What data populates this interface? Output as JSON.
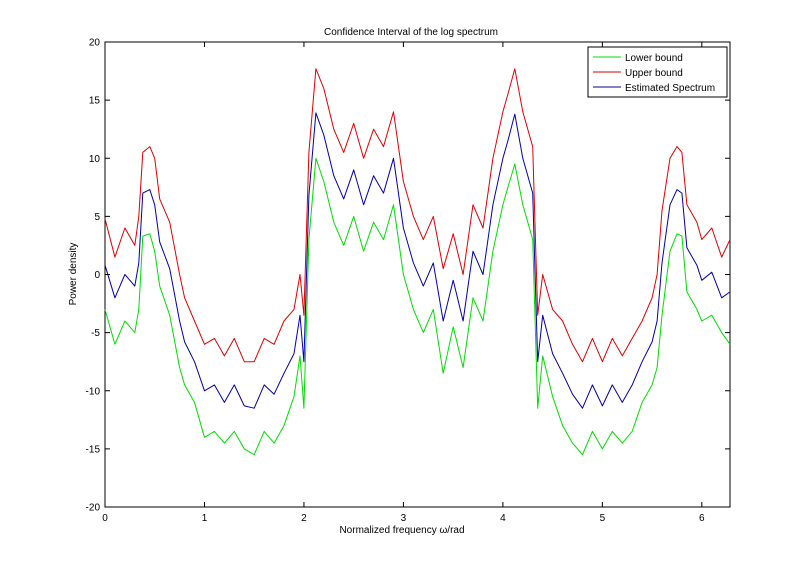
{
  "chart_data": {
    "type": "line",
    "title": "Confidence Interval of the log spectrum",
    "xlabel": "Normalized frequency  ω/rad",
    "ylabel": "Power density",
    "xlim": [
      0,
      6.2832
    ],
    "ylim": [
      -20,
      20
    ],
    "xticks": [
      "0",
      "1",
      "2",
      "3",
      "4",
      "5",
      "6"
    ],
    "yticks": [
      "-20",
      "-15",
      "-10",
      "-5",
      "0",
      "5",
      "10",
      "15",
      "20"
    ],
    "grid": false,
    "legend_position": "top-right",
    "colors": {
      "lower": "#00dd00",
      "upper": "#dd0000",
      "estimate": "#0000aa"
    },
    "x": [
      0,
      0.1,
      0.2,
      0.3,
      0.34,
      0.38,
      0.45,
      0.5,
      0.55,
      0.65,
      0.75,
      0.8,
      0.9,
      1.0,
      1.1,
      1.2,
      1.3,
      1.4,
      1.5,
      1.6,
      1.7,
      1.8,
      1.9,
      1.96,
      2.0,
      2.05,
      2.12,
      2.2,
      2.3,
      2.4,
      2.5,
      2.6,
      2.7,
      2.8,
      2.9,
      3.0,
      3.1,
      3.2,
      3.3,
      3.4,
      3.5,
      3.6,
      3.7,
      3.8,
      3.9,
      4.0,
      4.05,
      4.12,
      4.2,
      4.3,
      4.35,
      4.4,
      4.5,
      4.6,
      4.7,
      4.8,
      4.9,
      5.0,
      5.1,
      5.2,
      5.3,
      5.4,
      5.5,
      5.55,
      5.6,
      5.68,
      5.75,
      5.8,
      5.85,
      5.95,
      6.0,
      6.1,
      6.2,
      6.2832
    ],
    "series": [
      {
        "name": "Lower bound",
        "key": "lower",
        "values": [
          -3.0,
          -6.0,
          -4.0,
          -5.0,
          -3.0,
          3.3,
          3.5,
          2.0,
          -1.0,
          -3.5,
          -8.0,
          -9.5,
          -11.0,
          -14.0,
          -13.5,
          -14.5,
          -13.5,
          -15.0,
          -15.5,
          -13.5,
          -14.5,
          -13.0,
          -10.5,
          -7.0,
          -11.5,
          3.0,
          10.0,
          8.0,
          4.5,
          2.5,
          5.0,
          2.0,
          4.5,
          3.0,
          6.0,
          0.0,
          -3.0,
          -5.0,
          -3.0,
          -8.5,
          -4.5,
          -8.0,
          -2.0,
          -4.0,
          2.0,
          6.0,
          7.5,
          9.5,
          6.0,
          3.0,
          -11.5,
          -7.0,
          -10.5,
          -13.0,
          -14.5,
          -15.5,
          -13.5,
          -15.0,
          -13.5,
          -14.5,
          -13.5,
          -11.0,
          -9.5,
          -8.0,
          -3.5,
          2.0,
          3.5,
          3.3,
          -1.5,
          -3.0,
          -4.0,
          -3.5,
          -5.0,
          -6.0
        ]
      },
      {
        "name": "Upper bound",
        "key": "upper",
        "values": [
          4.8,
          1.5,
          4.0,
          2.5,
          5.0,
          10.5,
          11.0,
          10.0,
          6.5,
          4.5,
          0.0,
          -2.0,
          -4.0,
          -6.0,
          -5.5,
          -7.0,
          -5.5,
          -7.5,
          -7.5,
          -5.5,
          -6.0,
          -4.0,
          -3.0,
          0.0,
          -3.5,
          10.5,
          17.7,
          16.0,
          12.5,
          10.5,
          13.0,
          10.0,
          12.5,
          11.0,
          14.0,
          8.0,
          5.0,
          3.0,
          5.0,
          0.5,
          3.5,
          0.0,
          6.0,
          4.0,
          10.0,
          14.0,
          15.5,
          17.7,
          14.0,
          11.0,
          -3.5,
          0.0,
          -3.0,
          -4.0,
          -6.0,
          -7.5,
          -5.5,
          -7.5,
          -5.5,
          -7.0,
          -5.5,
          -4.0,
          -2.0,
          0.0,
          5.5,
          10.0,
          11.0,
          10.5,
          6.0,
          4.5,
          3.0,
          4.0,
          1.5,
          3.0
        ]
      },
      {
        "name": "Estimated Spectrum",
        "key": "estimate",
        "values": [
          0.8,
          -2.0,
          0.0,
          -1.0,
          1.0,
          7.0,
          7.3,
          6.0,
          2.8,
          0.5,
          -4.0,
          -5.8,
          -7.5,
          -10.0,
          -9.5,
          -11.0,
          -9.5,
          -11.3,
          -11.5,
          -9.5,
          -10.3,
          -8.5,
          -6.8,
          -3.5,
          -7.5,
          6.8,
          13.9,
          12.0,
          8.5,
          6.5,
          9.0,
          6.0,
          8.5,
          7.0,
          10.0,
          4.0,
          1.0,
          -1.0,
          1.0,
          -4.0,
          -0.5,
          -4.0,
          2.0,
          0.0,
          6.0,
          10.0,
          11.5,
          13.8,
          10.0,
          7.0,
          -7.5,
          -3.5,
          -6.8,
          -8.5,
          -10.3,
          -11.5,
          -9.5,
          -11.3,
          -9.5,
          -11.0,
          -9.5,
          -7.5,
          -5.8,
          -4.0,
          1.0,
          6.0,
          7.3,
          7.0,
          2.3,
          0.8,
          -0.5,
          0.2,
          -2.0,
          -1.5
        ]
      }
    ]
  }
}
